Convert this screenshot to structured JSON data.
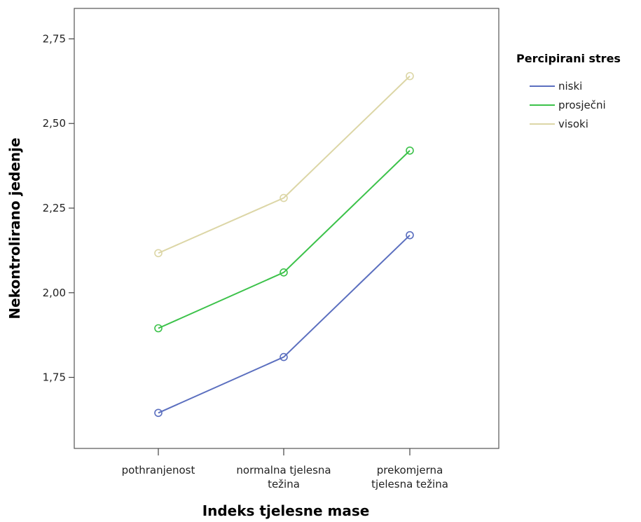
{
  "chart_data": {
    "type": "line",
    "xlabel": "Indeks tjelesne mase",
    "ylabel": "Nekontrolirano jedenje",
    "categories": [
      [
        "pothranjenost"
      ],
      [
        "normalna tjelesna",
        "težina"
      ],
      [
        "prekomjerna",
        "tjelesna težina"
      ]
    ],
    "ylim": [
      1.54,
      2.84
    ],
    "yticks": [
      1.75,
      2.0,
      2.25,
      2.5,
      2.75
    ],
    "ytick_labels": [
      "1,75",
      "2,00",
      "2,25",
      "2,50",
      "2,75"
    ],
    "grid": false,
    "legend": {
      "title": "Percipirani stres",
      "placement": "right"
    },
    "series": [
      {
        "name": "niski",
        "color": "#5b6fbf",
        "values": [
          1.645,
          1.81,
          2.17
        ]
      },
      {
        "name": "prosječni",
        "color": "#3cc24a",
        "values": [
          1.895,
          2.06,
          2.42
        ]
      },
      {
        "name": "visoki",
        "color": "#dcd6a6",
        "values": [
          2.117,
          2.28,
          2.64
        ]
      }
    ]
  }
}
